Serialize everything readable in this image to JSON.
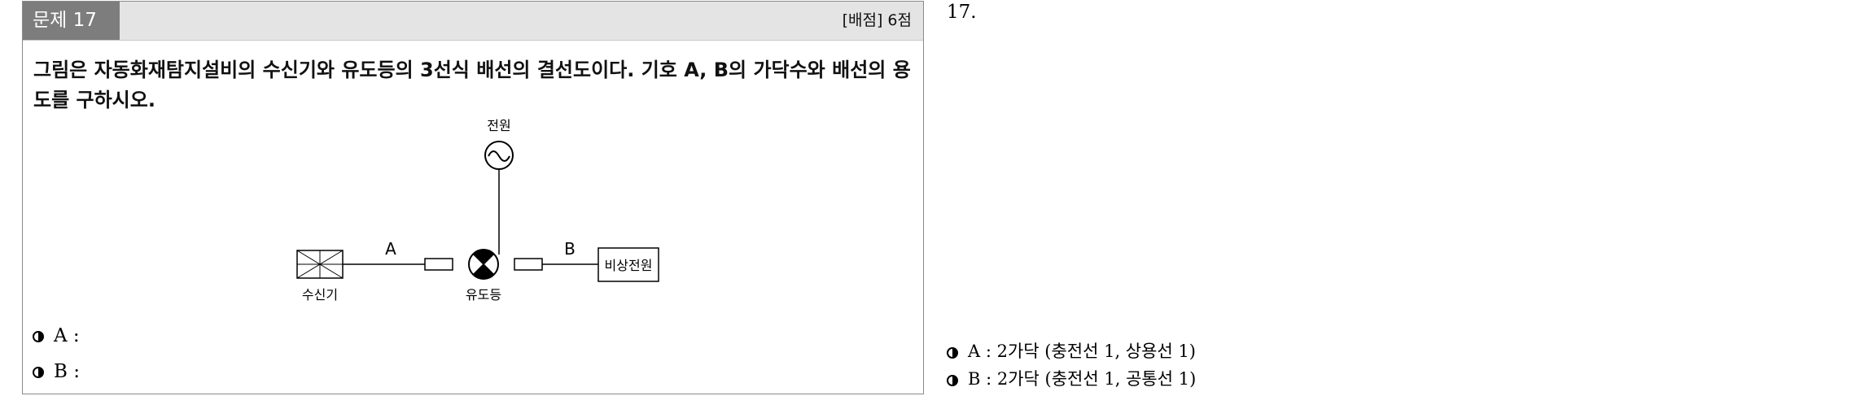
{
  "question": {
    "number_label": "문제 17",
    "score_label": "[배점] 6점",
    "text": "그림은 자동화재탐지설비의 수신기와 유도등의 3선식 배선의 결선도이다. 기호 A, B의 가닥수와 배선의 용도를 구하시오."
  },
  "diagram": {
    "power_label": "전원",
    "receiver_label": "수신기",
    "guide_light_label": "유도등",
    "emergency_power_label": "비상전원",
    "wire_a_label": "A",
    "wire_b_label": "B"
  },
  "answer_blanks": [
    {
      "label": "A :"
    },
    {
      "label": "B :"
    }
  ],
  "solution": {
    "number": "17.",
    "answers": [
      {
        "text": "A : 2가닥 (충전선 1, 상용선 1)"
      },
      {
        "text": "B : 2가닥 (충전선 1, 공통선 1)"
      }
    ]
  },
  "colors": {
    "header_bg": "#e4e4e4",
    "number_tab_bg": "#7d7d7d",
    "border": "#8a8a8a"
  }
}
